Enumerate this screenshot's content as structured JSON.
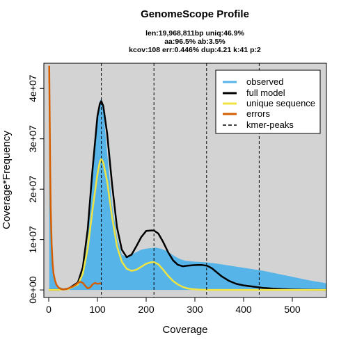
{
  "chart_data": {
    "type": "line",
    "title": "GenomeScope Profile",
    "subtitle_lines": [
      "len:19,968,811bp uniq:46.9%",
      "aa:96.5% ab:3.5%",
      "kcov:108 err:0.446%  dup:4.21  k:41 p:2"
    ],
    "xlabel": "Coverage",
    "ylabel": "Coverage*Frequency",
    "xlim": [
      -10,
      570
    ],
    "ylim": [
      -1500000,
      45000000
    ],
    "xticks": [
      0,
      100,
      200,
      300,
      400,
      500
    ],
    "xtick_labels": [
      "0",
      "100",
      "200",
      "300",
      "400",
      "500"
    ],
    "yticks": [
      0,
      10000000,
      20000000,
      30000000,
      40000000
    ],
    "ytick_labels": [
      "0e+00",
      "1e+07",
      "2e+07",
      "3e+07",
      "4e+07"
    ],
    "kmer_peaks": [
      108,
      216,
      324,
      432
    ],
    "legend_position": "top-right",
    "colors": {
      "observed": "#56B4E9",
      "full_model": "#000000",
      "unique_sequence": "#F0E442",
      "errors": "#D55E00",
      "kmer_peaks": "#000000",
      "panel_bg": "#d3d3d3"
    },
    "series": [
      {
        "name": "observed",
        "style": "filled-area",
        "x": [
          1,
          3,
          5,
          8,
          12,
          20,
          30,
          40,
          50,
          60,
          70,
          80,
          90,
          100,
          105,
          108,
          112,
          120,
          130,
          140,
          150,
          160,
          170,
          180,
          190,
          200,
          210,
          220,
          230,
          240,
          250,
          260,
          270,
          280,
          300,
          320,
          340,
          360,
          380,
          400,
          420,
          440,
          460,
          480,
          500,
          520,
          540,
          560,
          570
        ],
        "y": [
          42000000,
          16000000,
          8000000,
          4000000,
          2000000,
          600000,
          300000,
          500000,
          900000,
          1600000,
          3500000,
          10000000,
          22000000,
          34000000,
          37500000,
          38000000,
          36000000,
          27000000,
          17000000,
          10500000,
          7000000,
          6500000,
          7000000,
          7500000,
          8000000,
          8200000,
          8300000,
          8400000,
          8200000,
          7800000,
          7200000,
          6600000,
          6100000,
          5800000,
          5600000,
          5500000,
          5300000,
          5000000,
          4700000,
          4400000,
          4100000,
          3800000,
          3400000,
          3000000,
          2600000,
          2200000,
          1800000,
          1500000,
          1300000
        ]
      },
      {
        "name": "full model",
        "style": "line",
        "x": [
          0,
          20,
          40,
          60,
          70,
          80,
          90,
          100,
          105,
          108,
          112,
          120,
          130,
          140,
          150,
          160,
          170,
          180,
          190,
          200,
          210,
          216,
          225,
          235,
          245,
          255,
          265,
          275,
          285,
          295,
          305,
          315,
          325,
          335,
          345,
          355,
          370,
          385,
          400,
          420,
          440,
          460,
          480,
          500,
          530,
          570
        ],
        "y": [
          0,
          20000,
          200000,
          1500000,
          4500000,
          12000000,
          24000000,
          34500000,
          37000000,
          37500000,
          36500000,
          31000000,
          21000000,
          12500000,
          8000000,
          6500000,
          7000000,
          8700000,
          10500000,
          11700000,
          11800000,
          11800000,
          11200000,
          9500000,
          7500000,
          5900000,
          5000000,
          4700000,
          4800000,
          4900000,
          4950000,
          4950000,
          4800000,
          4300000,
          3500000,
          2700000,
          1800000,
          1200000,
          900000,
          650000,
          400000,
          250000,
          150000,
          80000,
          30000,
          0
        ]
      },
      {
        "name": "unique sequence",
        "style": "line",
        "x": [
          0,
          20,
          40,
          60,
          70,
          80,
          90,
          100,
          105,
          108,
          112,
          120,
          130,
          140,
          150,
          160,
          170,
          180,
          190,
          200,
          210,
          216,
          225,
          235,
          245,
          255,
          265,
          275,
          285,
          295,
          310,
          330,
          350,
          570
        ],
        "y": [
          0,
          20000,
          150000,
          1100000,
          3200000,
          8200000,
          16000000,
          23000000,
          25500000,
          26000000,
          25300000,
          21500000,
          14500000,
          8700000,
          5600000,
          4200000,
          3800000,
          4000000,
          4600000,
          5200000,
          5500000,
          5500000,
          5100000,
          4000000,
          2800000,
          1800000,
          1100000,
          600000,
          300000,
          150000,
          50000,
          10000,
          0,
          0
        ]
      },
      {
        "name": "errors",
        "style": "line",
        "x": [
          1,
          2,
          3,
          4,
          6,
          8,
          10,
          13,
          16,
          20,
          25,
          30,
          35,
          40,
          45,
          50,
          55,
          60,
          65,
          70,
          75,
          80,
          85,
          90,
          95,
          100,
          105,
          108
        ],
        "y": [
          44500000,
          34000000,
          24000000,
          16500000,
          9000000,
          5200000,
          3200000,
          1800000,
          1000000,
          500000,
          200000,
          100000,
          150000,
          300000,
          500000,
          700000,
          1000000,
          1400000,
          1600000,
          1400000,
          800000,
          300000,
          500000,
          1100000,
          1400000,
          1200000,
          1300000,
          1300000
        ]
      }
    ]
  }
}
